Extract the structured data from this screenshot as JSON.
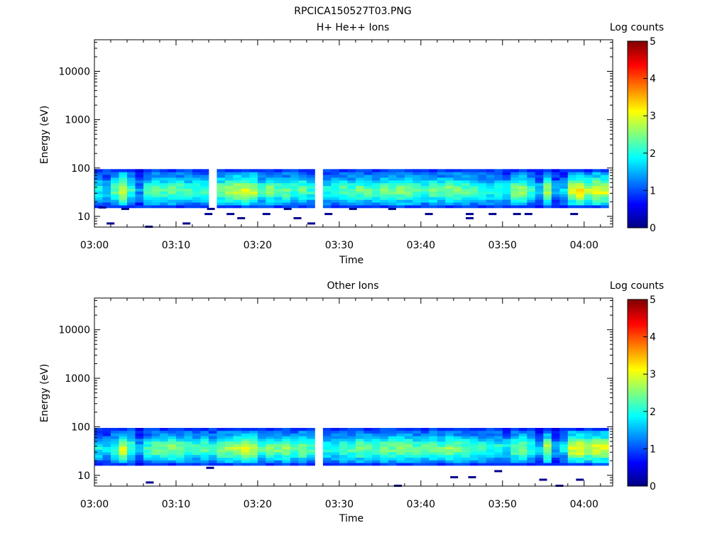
{
  "file_title": "RPCICA150527T03.PNG",
  "colors": {
    "axis": "#000000",
    "low_count": "#00008f",
    "background": "#ffffff"
  },
  "colorbar": {
    "label": "Log counts",
    "range": [
      0,
      5
    ],
    "ticks": [
      "0",
      "1",
      "2",
      "3",
      "4",
      "5"
    ],
    "colormap": "jet"
  },
  "chart_data": [
    {
      "type": "heatmap",
      "title": "H+ He++ Ions",
      "xlabel": "Time",
      "ylabel": "Energy (eV)",
      "x_ticks": [
        "03:00",
        "03:10",
        "03:20",
        "03:30",
        "03:40",
        "03:50",
        "04:00"
      ],
      "y_ticks": [
        "10",
        "100",
        "1000",
        "10000"
      ],
      "y_scale": "log",
      "ylim": [
        6,
        45000
      ],
      "xlim_minutes": [
        0,
        63.5
      ],
      "band_energy_range_eV": [
        15,
        95
      ],
      "time_step_minutes": 1,
      "mean_log_counts": [
        1.8,
        1.7,
        2.2,
        2.9,
        2.0,
        1.3,
        2.1,
        2.3,
        2.2,
        2.3,
        2.2,
        2.1,
        2.0,
        2.1,
        0,
        2.3,
        2.6,
        2.7,
        2.8,
        2.7,
        2.1,
        2.4,
        2.2,
        2.3,
        2.1,
        2.3,
        2.0,
        0,
        1.9,
        2.0,
        2.2,
        2.1,
        2.3,
        2.2,
        2.1,
        2.3,
        2.2,
        2.4,
        2.3,
        2.2,
        2.1,
        2.3,
        2.2,
        2.4,
        2.3,
        2.2,
        2.1,
        2.0,
        1.9,
        2.0,
        1.8,
        2.4,
        2.6,
        2.0,
        1.5,
        2.6,
        1.4,
        1.6,
        2.7,
        3.1,
        2.6,
        2.9,
        2.8
      ],
      "sparse_low_points": [
        {
          "time_min": 0.5,
          "energy_eV": 15
        },
        {
          "time_min": 1.5,
          "energy_eV": 7
        },
        {
          "time_min": 3.3,
          "energy_eV": 14
        },
        {
          "time_min": 6.2,
          "energy_eV": 6
        },
        {
          "time_min": 10.8,
          "energy_eV": 7
        },
        {
          "time_min": 13.5,
          "energy_eV": 11
        },
        {
          "time_min": 13.8,
          "energy_eV": 14
        },
        {
          "time_min": 16.2,
          "energy_eV": 11
        },
        {
          "time_min": 17.5,
          "energy_eV": 9
        },
        {
          "time_min": 20.6,
          "energy_eV": 11
        },
        {
          "time_min": 23.2,
          "energy_eV": 14
        },
        {
          "time_min": 24.4,
          "energy_eV": 9
        },
        {
          "time_min": 26.1,
          "energy_eV": 7
        },
        {
          "time_min": 28.2,
          "energy_eV": 11
        },
        {
          "time_min": 31.2,
          "energy_eV": 14
        },
        {
          "time_min": 36.0,
          "energy_eV": 14
        },
        {
          "time_min": 40.5,
          "energy_eV": 11
        },
        {
          "time_min": 45.5,
          "energy_eV": 9
        },
        {
          "time_min": 45.5,
          "energy_eV": 11
        },
        {
          "time_min": 48.3,
          "energy_eV": 11
        },
        {
          "time_min": 51.3,
          "energy_eV": 11
        },
        {
          "time_min": 52.7,
          "energy_eV": 11
        },
        {
          "time_min": 58.3,
          "energy_eV": 11
        }
      ]
    },
    {
      "type": "heatmap",
      "title": "Other Ions",
      "xlabel": "Time",
      "ylabel": "Energy (eV)",
      "x_ticks": [
        "03:00",
        "03:10",
        "03:20",
        "03:30",
        "03:40",
        "03:50",
        "04:00"
      ],
      "y_ticks": [
        "10",
        "100",
        "1000",
        "10000"
      ],
      "y_scale": "log",
      "ylim": [
        6,
        45000
      ],
      "xlim_minutes": [
        0,
        63.5
      ],
      "band_energy_range_eV": [
        16,
        95
      ],
      "time_step_minutes": 1,
      "mean_log_counts": [
        1.8,
        1.6,
        2.0,
        2.8,
        2.1,
        1.4,
        2.0,
        2.3,
        2.3,
        2.4,
        2.3,
        2.2,
        2.1,
        2.2,
        2.0,
        2.4,
        2.5,
        2.6,
        2.7,
        2.6,
        2.2,
        2.4,
        2.3,
        2.4,
        2.2,
        2.5,
        2.1,
        0,
        1.9,
        2.0,
        2.2,
        2.2,
        2.4,
        2.3,
        2.2,
        2.4,
        2.3,
        2.4,
        2.3,
        2.2,
        2.2,
        2.3,
        2.2,
        2.4,
        2.3,
        2.2,
        2.1,
        2.0,
        1.9,
        2.0,
        1.8,
        2.3,
        2.5,
        1.9,
        1.5,
        2.6,
        1.4,
        1.7,
        2.8,
        3.0,
        2.7,
        2.9,
        2.8
      ],
      "sparse_low_points": [
        {
          "time_min": 6.3,
          "energy_eV": 7
        },
        {
          "time_min": 13.7,
          "energy_eV": 14
        },
        {
          "time_min": 36.7,
          "energy_eV": 6
        },
        {
          "time_min": 43.6,
          "energy_eV": 9
        },
        {
          "time_min": 45.8,
          "energy_eV": 9
        },
        {
          "time_min": 49.0,
          "energy_eV": 12
        },
        {
          "time_min": 54.5,
          "energy_eV": 8
        },
        {
          "time_min": 56.5,
          "energy_eV": 6
        },
        {
          "time_min": 59.0,
          "energy_eV": 8
        }
      ]
    }
  ]
}
